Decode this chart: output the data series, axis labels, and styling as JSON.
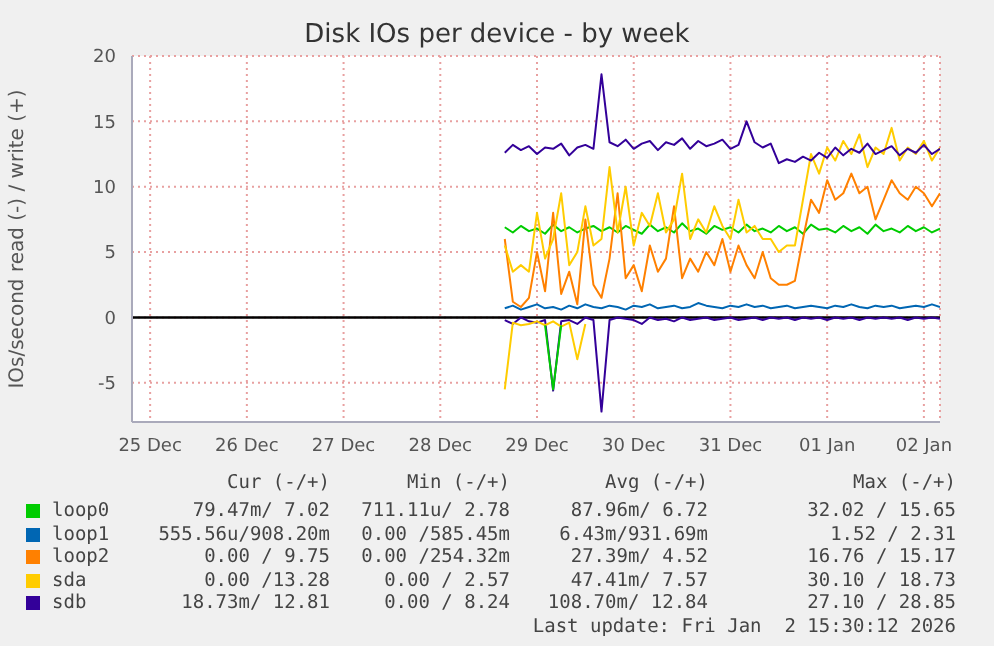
{
  "chart_data": {
    "type": "line",
    "title": "Disk IOs per device - by week",
    "ylabel": "IOs/second read (-) / write (+)",
    "x": [
      "2025-12-29T04:00",
      "2025-12-29T06:00",
      "2025-12-29T08:00",
      "2025-12-29T10:00",
      "2025-12-29T12:00",
      "2025-12-29T14:00",
      "2025-12-29T16:00",
      "2025-12-29T18:00",
      "2025-12-29T20:00",
      "2025-12-29T22:00",
      "2025-12-30T00:00",
      "2025-12-30T02:00",
      "2025-12-30T04:00",
      "2025-12-30T06:00",
      "2025-12-30T08:00",
      "2025-12-30T10:00",
      "2025-12-30T12:00",
      "2025-12-30T14:00",
      "2025-12-30T16:00",
      "2025-12-30T18:00",
      "2025-12-30T20:00",
      "2025-12-30T22:00",
      "2025-12-31T00:00",
      "2025-12-31T02:00",
      "2025-12-31T04:00",
      "2025-12-31T06:00",
      "2025-12-31T08:00",
      "2025-12-31T10:00",
      "2025-12-31T12:00",
      "2025-12-31T14:00",
      "2025-12-31T16:00",
      "2025-12-31T18:00",
      "2025-12-31T20:00",
      "2025-12-31T22:00",
      "2026-01-01T00:00",
      "2026-01-01T02:00",
      "2026-01-01T04:00",
      "2026-01-01T06:00",
      "2026-01-01T08:00",
      "2026-01-01T10:00",
      "2026-01-01T12:00",
      "2026-01-01T14:00",
      "2026-01-01T16:00",
      "2026-01-01T18:00",
      "2026-01-01T20:00",
      "2026-01-01T22:00",
      "2026-01-02T00:00",
      "2026-01-02T02:00",
      "2026-01-02T04:00",
      "2026-01-02T06:00",
      "2026-01-02T08:00",
      "2026-01-02T10:00",
      "2026-01-02T12:00",
      "2026-01-02T14:00",
      "2026-01-02T16:00"
    ],
    "series": [
      {
        "name": "loop0",
        "color": "#00cc00",
        "values": [
          6.9,
          6.5,
          7.0,
          6.6,
          6.8,
          6.4,
          7.1,
          6.6,
          6.9,
          6.5,
          6.8,
          7.0,
          6.6,
          6.9,
          6.5,
          7.0,
          6.7,
          6.4,
          7.1,
          6.6,
          6.9,
          6.5,
          7.2,
          6.6,
          6.8,
          6.4,
          7.0,
          6.7,
          6.9,
          6.5,
          7.1,
          6.6,
          6.8,
          6.5,
          7.0,
          6.6,
          6.9,
          6.4,
          7.1,
          6.7,
          6.8,
          6.5,
          7.0,
          6.6,
          6.9,
          6.4,
          7.1,
          6.6,
          6.8,
          6.5,
          7.0,
          6.6,
          6.9,
          6.5,
          6.8
        ]
      },
      {
        "name": "loop1",
        "color": "#0066b3",
        "values": [
          0.7,
          0.9,
          0.6,
          0.8,
          1.0,
          0.7,
          0.8,
          0.6,
          0.9,
          0.7,
          1.0,
          0.8,
          0.7,
          0.9,
          0.8,
          0.6,
          0.9,
          0.8,
          1.0,
          0.7,
          0.8,
          0.9,
          0.7,
          0.8,
          1.1,
          0.9,
          0.8,
          0.7,
          0.9,
          0.8,
          1.0,
          0.8,
          0.9,
          0.7,
          0.8,
          0.9,
          0.7,
          0.8,
          0.9,
          0.8,
          0.7,
          0.9,
          0.8,
          1.0,
          0.8,
          0.7,
          0.9,
          0.8,
          0.9,
          0.7,
          0.8,
          0.9,
          0.8,
          1.0,
          0.8
        ]
      },
      {
        "name": "loop2",
        "color": "#ff8000",
        "values": [
          6.0,
          1.2,
          0.8,
          1.5,
          5.0,
          2.0,
          8.0,
          1.8,
          3.5,
          1.0,
          7.5,
          2.5,
          1.5,
          4.5,
          9.5,
          3.0,
          4.0,
          2.0,
          5.5,
          3.5,
          4.5,
          8.5,
          3.0,
          4.5,
          3.5,
          5.0,
          4.0,
          6.0,
          3.5,
          5.5,
          4.0,
          3.0,
          5.0,
          3.0,
          2.5,
          2.5,
          2.8,
          6.0,
          9.0,
          8.0,
          10.5,
          9.0,
          9.5,
          11.0,
          9.5,
          10.0,
          7.5,
          9.0,
          10.5,
          9.5,
          9.0,
          10.0,
          9.5,
          8.5,
          9.5
        ]
      },
      {
        "name": "sda",
        "color": "#ffcc00",
        "values": [
          5.5,
          3.5,
          4.0,
          3.5,
          8.0,
          4.5,
          6.0,
          9.5,
          4.0,
          5.0,
          8.5,
          5.5,
          6.0,
          11.5,
          6.5,
          10.0,
          5.5,
          8.0,
          7.0,
          9.5,
          6.5,
          7.5,
          11.0,
          6.0,
          7.5,
          6.5,
          8.5,
          7.0,
          6.0,
          9.0,
          6.5,
          7.0,
          6.0,
          6.0,
          5.0,
          5.5,
          5.5,
          9.0,
          12.5,
          11.0,
          13.0,
          12.0,
          13.5,
          12.5,
          14.0,
          11.5,
          13.0,
          12.5,
          14.5,
          12.0,
          13.0,
          12.5,
          13.5,
          12.0,
          13.0
        ]
      },
      {
        "name": "sdb",
        "color": "#330099",
        "values": [
          12.6,
          13.2,
          12.8,
          13.1,
          12.5,
          13.0,
          12.9,
          13.3,
          12.4,
          13.0,
          13.2,
          12.9,
          18.6,
          13.4,
          13.1,
          13.6,
          12.9,
          13.3,
          13.5,
          12.8,
          13.4,
          13.2,
          13.7,
          12.9,
          13.5,
          13.1,
          13.3,
          13.6,
          12.9,
          13.2,
          15.0,
          13.4,
          13.0,
          13.3,
          11.8,
          12.1,
          11.9,
          12.3,
          12.0,
          12.6,
          12.2,
          13.0,
          12.4,
          12.9,
          12.6,
          13.3,
          12.5,
          12.8,
          13.1,
          12.4,
          12.9,
          12.6,
          13.2,
          12.5,
          12.9
        ]
      },
      {
        "color": "#330099",
        "values": [
          -0.2,
          -0.5,
          0,
          -0.3,
          -0.4,
          -0.2,
          -5.6,
          -0.3,
          -0.2,
          -0.5,
          0,
          -0.2,
          -7.2,
          -0.2,
          0,
          -0.1,
          -0.2,
          -0.5,
          0,
          -0.2,
          -0.1,
          -0.3,
          0,
          -0.2,
          -0.1,
          0,
          -0.2,
          -0.1,
          0,
          -0.2,
          -0.1,
          0,
          -0.2,
          0,
          -0.1,
          0,
          -0.2,
          0,
          -0.1,
          0,
          -0.2,
          0,
          -0.1,
          0,
          -0.2,
          0,
          -0.1,
          0,
          -0.1,
          0,
          -0.2,
          0,
          -0.1,
          0,
          -0.1
        ]
      },
      {
        "color": "#ffcc00",
        "values": [
          -5.5,
          -0.4,
          -0.6,
          -0.5,
          -0.3,
          -0.6,
          -0.3,
          -0.7,
          -0.4,
          -3.2,
          -0.5,
          null,
          null,
          null,
          null,
          null,
          null,
          null,
          null,
          null,
          null,
          null,
          null,
          null,
          null,
          null,
          null,
          null,
          null,
          null,
          null,
          null,
          null,
          null,
          null,
          null,
          null,
          null,
          null,
          null,
          null,
          null,
          null,
          null,
          null,
          null,
          null,
          null,
          null,
          null,
          null,
          null,
          null,
          null,
          null
        ]
      },
      {
        "color": "#00cc00",
        "values": [
          null,
          null,
          null,
          null,
          null,
          -0.6,
          -5.5,
          -0.6,
          null,
          null,
          null,
          null,
          null,
          null,
          null,
          null,
          null,
          null,
          null,
          null,
          null,
          null,
          null,
          null,
          null,
          null,
          null,
          null,
          null,
          null,
          null,
          null,
          null,
          null,
          null,
          null,
          null,
          null,
          null,
          null,
          null,
          null,
          null,
          null,
          null,
          null,
          null,
          null,
          null,
          null,
          null,
          null,
          null,
          null,
          null
        ]
      }
    ],
    "xlim": [
      "2025-12-25T07:30",
      "2026-01-02T16:00"
    ],
    "xticks": [
      {
        "value": "2025-12-25T12:00",
        "label": "25 Dec"
      },
      {
        "value": "2025-12-26T12:00",
        "label": "26 Dec"
      },
      {
        "value": "2025-12-27T12:00",
        "label": "27 Dec"
      },
      {
        "value": "2025-12-28T12:00",
        "label": "28 Dec"
      },
      {
        "value": "2025-12-29T12:00",
        "label": "29 Dec"
      },
      {
        "value": "2025-12-30T12:00",
        "label": "30 Dec"
      },
      {
        "value": "2025-12-31T12:00",
        "label": "31 Dec"
      },
      {
        "value": "2026-01-01T12:00",
        "label": "01 Jan"
      },
      {
        "value": "2026-01-02T12:00",
        "label": "02 Jan"
      }
    ],
    "ylim": [
      -8,
      20
    ],
    "yticks": [
      -5,
      0,
      5,
      10,
      15,
      20
    ],
    "grid": true,
    "legend": "bottom",
    "marker": "none",
    "line_style": "solid",
    "ref_lines": [
      {
        "axis": "y",
        "value": 0,
        "color": "#000000"
      }
    ],
    "annotations": [
      "Cur (-/+)",
      "Min (-/+)",
      "Avg (-/+)",
      "Max (-/+)",
      "79.47m/ 7.02",
      "711.11u/ 2.78",
      "87.96m/ 6.72",
      "32.02 / 15.65",
      "555.56u/908.20m",
      "0.00 /585.45m",
      "6.43m/931.69m",
      "1.52 / 2.31",
      "0.00 / 9.75",
      "0.00 /254.32m",
      "27.39m/ 4.52",
      "16.76 / 15.17",
      "0.00 /13.28",
      "0.00 / 2.57",
      "47.41m/ 7.57",
      "30.10 / 18.73",
      "18.73m/ 12.81",
      "0.00 / 8.24",
      "108.70m/ 12.84",
      "27.10 / 28.85",
      "Last update: Fri Jan  2 15:30:12 2026"
    ]
  }
}
